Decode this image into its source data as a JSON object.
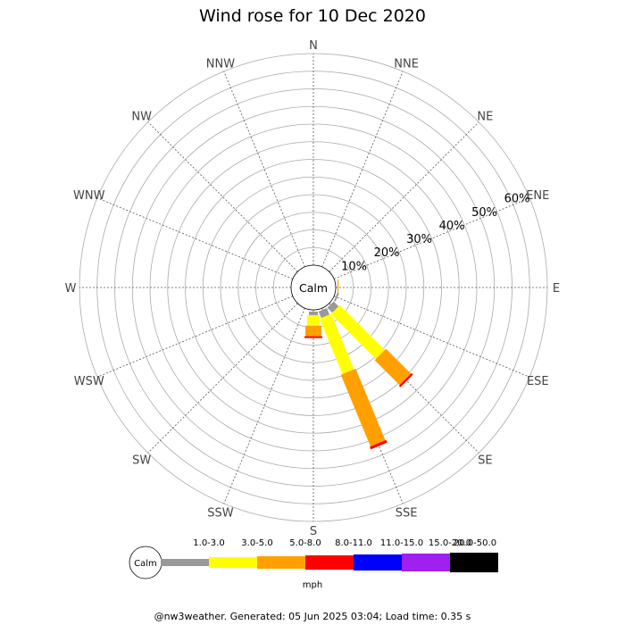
{
  "chart_data": {
    "type": "wind-rose",
    "title": "Wind rose for 10 Dec 2020",
    "directions": [
      "N",
      "NNE",
      "NE",
      "ENE",
      "E",
      "ESE",
      "SE",
      "SSE",
      "S",
      "SSW",
      "SW",
      "WSW",
      "W",
      "WNW",
      "NW",
      "NNW"
    ],
    "radial_ticks": [
      "10%",
      "20%",
      "30%",
      "40%",
      "50%",
      "60%"
    ],
    "radial_max": 60,
    "calm_label": "Calm",
    "unit": "mph",
    "speed_bins": [
      {
        "label": "",
        "color": "#999999"
      },
      {
        "label": "1.0-3.0",
        "color": "#ffff00"
      },
      {
        "label": "3.0-5.0",
        "color": "#ffa000"
      },
      {
        "label": "5.0-8.0",
        "color": "#ff0000"
      },
      {
        "label": "8.0-11.0",
        "color": "#0000ff"
      },
      {
        "label": "11.0-15.0",
        "color": "#a020f0"
      },
      {
        "label": "15.0-20.0",
        "color": "#000000"
      }
    ],
    "legend_extra_label": "20.0-50.0",
    "series": [
      {
        "direction": "E",
        "values": [
          0,
          0,
          0.3,
          0,
          0,
          0,
          0
        ]
      },
      {
        "direction": "ESE",
        "values": [
          0.5,
          0,
          0,
          0,
          0,
          0,
          0
        ]
      },
      {
        "direction": "SE",
        "values": [
          2,
          18,
          10,
          0.6,
          0,
          0,
          0
        ]
      },
      {
        "direction": "SSE",
        "values": [
          2,
          17,
          22,
          0.8,
          0,
          0,
          0
        ]
      },
      {
        "direction": "S",
        "values": [
          1,
          3,
          3,
          0.5,
          0,
          0,
          0
        ]
      }
    ]
  },
  "footer": "@nw3weather. Generated: 05 Jun 2025 03:04; Load time: 0.35 s"
}
